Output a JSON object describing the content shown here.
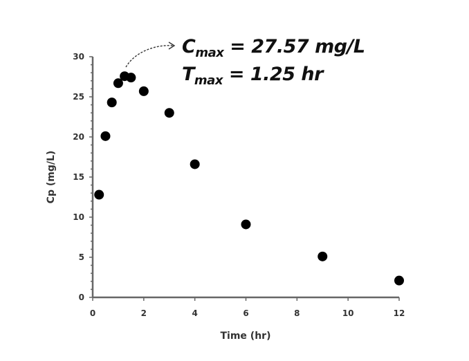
{
  "chart_data": {
    "type": "scatter",
    "title": "",
    "xlabel": "Time (hr)",
    "ylabel": "Cp (mg/L)",
    "xlim": [
      0,
      12
    ],
    "ylim": [
      0,
      30
    ],
    "x_ticks": [
      0,
      2,
      4,
      6,
      8,
      10,
      12
    ],
    "y_ticks": [
      0,
      5,
      10,
      15,
      20,
      25,
      30
    ],
    "grid": false,
    "legend": null,
    "series": [
      {
        "name": "Cp",
        "marker": "filled-circle",
        "color": "#000000",
        "x": [
          0.25,
          0.5,
          0.75,
          1.0,
          1.25,
          1.5,
          2,
          3,
          4,
          6,
          9,
          12
        ],
        "y": [
          12.8,
          20.1,
          24.3,
          26.7,
          27.57,
          27.4,
          25.7,
          23.0,
          16.6,
          9.1,
          5.1,
          2.1
        ]
      }
    ],
    "annotations": [
      {
        "text": "Cmax = 27.57 mg/L",
        "symbol": "C",
        "subscript": "max",
        "rest": " = 27.57 mg/L",
        "points_to": [
          1.25,
          27.57
        ],
        "arrow": "dashed-curved"
      },
      {
        "text": "Tmax = 1.25 hr",
        "symbol": "T",
        "subscript": "max",
        "rest": " = 1.25 hr"
      }
    ]
  },
  "labels": {
    "x_axis_title": "Time (hr)",
    "y_axis_title": "Cp (mg/L)",
    "cmax_symbol": "C",
    "cmax_sub": "max",
    "cmax_rest": " = 27.57 mg/L",
    "tmax_symbol": "T",
    "tmax_sub": "max",
    "tmax_rest": " = 1.25 hr"
  },
  "colors": {
    "axis": "#666666",
    "marker": "#000000",
    "text": "#333333"
  }
}
